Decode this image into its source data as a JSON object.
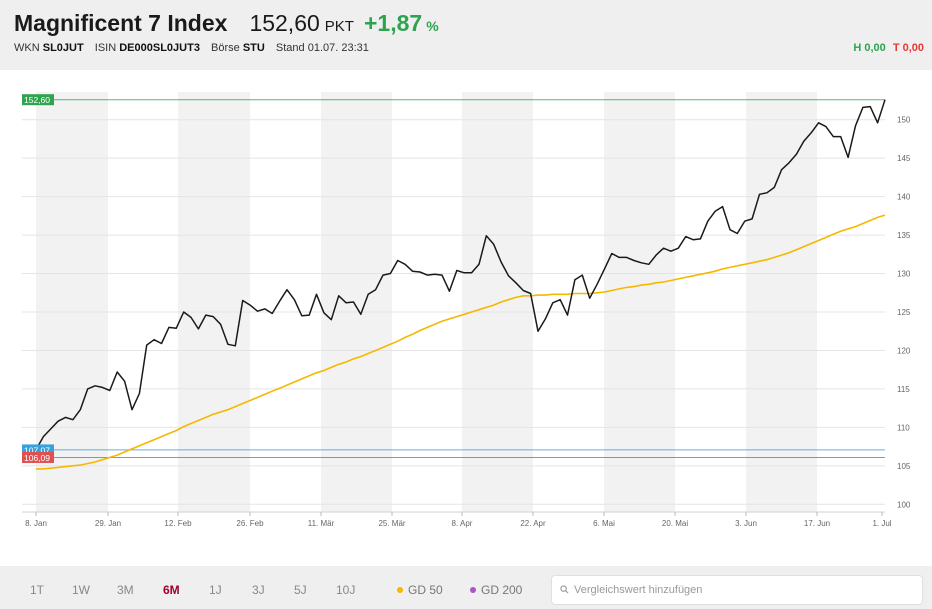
{
  "header": {
    "title": "Magnificent 7 Index",
    "price": "152,60",
    "unit": "PKT",
    "change": "+1,87",
    "change_pct_symbol": "%",
    "meta": [
      {
        "label": "WKN",
        "value": "SL0JUT"
      },
      {
        "label": "ISIN",
        "value": "DE000SL0JUT3"
      },
      {
        "label": "Börse",
        "value": "STU"
      },
      {
        "label": "Stand",
        "value": "01.07. 23:31"
      }
    ],
    "high": "H 0,00",
    "low": "T 0,00"
  },
  "colors": {
    "price_line": "#1a1a1a",
    "gd50": "#f5b800",
    "gd200": "#a855c8",
    "positive": "#2ea44f",
    "negative": "#e53935",
    "marker_blue": "#3aa0dc",
    "marker_green": "#2ea44f",
    "marker_red": "#e05050"
  },
  "chart_data": {
    "type": "line",
    "ylim": [
      99,
      153.6
    ],
    "y_ticks": [
      100,
      105,
      110,
      115,
      120,
      125,
      130,
      135,
      140,
      145,
      150
    ],
    "x_ticks": [
      "8. Jan",
      "29. Jan",
      "12. Feb",
      "26. Feb",
      "11. Mär",
      "25. Mär",
      "8. Apr",
      "22. Apr",
      "6. Mai",
      "20. Mai",
      "3. Jun",
      "17. Jun",
      "1. Jul"
    ],
    "grid": true,
    "series": [
      {
        "values": [
          107.1,
          108.8,
          109.8,
          110.8,
          111.3,
          111,
          112.3,
          115,
          115.4,
          115.2,
          114.8,
          117.2,
          116,
          112.3,
          114.4,
          120.7,
          121.4,
          120.9,
          123,
          122.9,
          125,
          124.3,
          122.8,
          124.6,
          124.4,
          123.4,
          120.8,
          120.6,
          126.5,
          125.9,
          125.1,
          125.4,
          124.8,
          126.4,
          127.9,
          126.6,
          124.5,
          124.6,
          127.3,
          124.9,
          124,
          127.1,
          126.2,
          126.3,
          124.7,
          127.3,
          127.9,
          129.8,
          130,
          131.7,
          131.2,
          130.3,
          130.2,
          129.8,
          129.9,
          129.8,
          127.7,
          130.4,
          130.1,
          130.1,
          131.2,
          134.9,
          133.8,
          131.5,
          129.7,
          128.8,
          127.8,
          127.4,
          122.5,
          124.1,
          126.2,
          126.6,
          124.6,
          129.2,
          129.8,
          126.8,
          128.6,
          130.6,
          132.6,
          132.1,
          132.1,
          131.7,
          131.4,
          131.2,
          132.4,
          133.3,
          132.9,
          133.3,
          134.8,
          134.4,
          134.5,
          136.8,
          138.1,
          138.7,
          135.7,
          135.2,
          136.8,
          137.1,
          140.3,
          140.5,
          141.2,
          143.5,
          144.4,
          145.5,
          147.2,
          148.3,
          149.6,
          149.1,
          147.8,
          147.8,
          145.1,
          149.2,
          151.6,
          151.7,
          149.6,
          152.6
        ]
      },
      {
        "name": "GD 50",
        "values": [
          104.6,
          104.6,
          104.7,
          104.8,
          104.9,
          105,
          105.1,
          105.3,
          105.5,
          105.8,
          106.1,
          106.4,
          106.8,
          107.2,
          107.6,
          108,
          108.4,
          108.8,
          109.2,
          109.6,
          110.1,
          110.5,
          110.9,
          111.3,
          111.7,
          112,
          112.3,
          112.7,
          113.1,
          113.5,
          113.9,
          114.3,
          114.7,
          115.1,
          115.5,
          115.9,
          116.3,
          116.7,
          117.1,
          117.4,
          117.8,
          118.2,
          118.5,
          118.9,
          119.2,
          119.6,
          120,
          120.4,
          120.8,
          121.2,
          121.7,
          122.1,
          122.6,
          123,
          123.4,
          123.8,
          124.1,
          124.4,
          124.7,
          125,
          125.3,
          125.6,
          125.9,
          126.3,
          126.6,
          126.9,
          127.1,
          127.1,
          127.2,
          127.2,
          127.3,
          127.3,
          127.3,
          127.4,
          127.4,
          127.4,
          127.5,
          127.6,
          127.8,
          128,
          128.2,
          128.3,
          128.5,
          128.6,
          128.8,
          128.9,
          129.1,
          129.3,
          129.5,
          129.7,
          129.9,
          130.1,
          130.3,
          130.6,
          130.8,
          131,
          131.2,
          131.4,
          131.6,
          131.8,
          132.1,
          132.4,
          132.7,
          133.1,
          133.5,
          133.9,
          134.3,
          134.7,
          135.1,
          135.5,
          135.8,
          136.1,
          136.5,
          136.9,
          137.3,
          137.6
        ]
      }
    ],
    "markers": [
      {
        "label": "152,60",
        "value": 152.6,
        "color": "#2ea44f"
      },
      {
        "label": "107,07",
        "value": 107.07,
        "color": "#3aa0dc"
      },
      {
        "label": "106,09",
        "value": 106.09,
        "color": "#e05050"
      }
    ]
  },
  "toolbar": {
    "ranges": [
      "1T",
      "1W",
      "3M",
      "6M",
      "1J",
      "3J",
      "5J",
      "10J"
    ],
    "active_range": "6M",
    "gd50_label": "GD 50",
    "gd200_label": "GD 200",
    "search_placeholder": "Vergleichswert hinzufügen"
  }
}
